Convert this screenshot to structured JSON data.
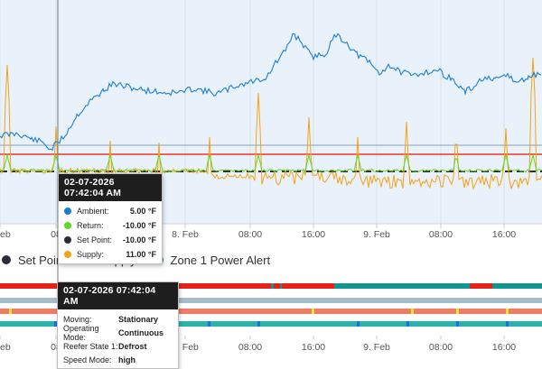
{
  "colors": {
    "ambient": "#1a7fd1",
    "return": "#62d626",
    "set_point": "#2a2c3a",
    "supply": "#f5a216",
    "zone_alert": "#13958f",
    "threshold": "#e8352b",
    "plot_bg": "#e9f2fb"
  },
  "top_axis_labels": [
    "eb",
    "08",
    "8. Feb",
    "08:00",
    "16:00",
    "9. Feb",
    "08:00",
    "16:00"
  ],
  "bottom_axis_labels": [
    "eb",
    "08",
    "8. Feb",
    "08:00",
    "16:00",
    "9. Feb",
    "08:00",
    "16:00"
  ],
  "legend": [
    {
      "label": "Set Point",
      "color": "#2a2c3a"
    },
    {
      "label": "Supply",
      "color": "#f5a216"
    },
    {
      "label": "Zone 1 Power Alert",
      "color": "#13958f"
    }
  ],
  "tooltip_temps": {
    "timestamp": "02-07-2026 07:42:04 AM",
    "rows": [
      {
        "label": "Ambient:",
        "value": "5.00 °F",
        "color": "#1a7fd1"
      },
      {
        "label": "Return:",
        "value": "-10.00 °F",
        "color": "#62d626"
      },
      {
        "label": "Set Point:",
        "value": "-10.00 °F",
        "color": "#2a2c3a"
      },
      {
        "label": "Supply:",
        "value": "11.00 °F",
        "color": "#f5a216"
      }
    ]
  },
  "tooltip_status": {
    "timestamp": "02-07-2026 07:42:04 AM",
    "rows": [
      {
        "label": "Moving:",
        "value": "Stationary"
      },
      {
        "label": "Operating Mode:",
        "value": "Continuous"
      },
      {
        "label": "Reefer State 1:",
        "value": "Defrost"
      },
      {
        "label": "Speed Mode:",
        "value": "high"
      }
    ]
  }
}
